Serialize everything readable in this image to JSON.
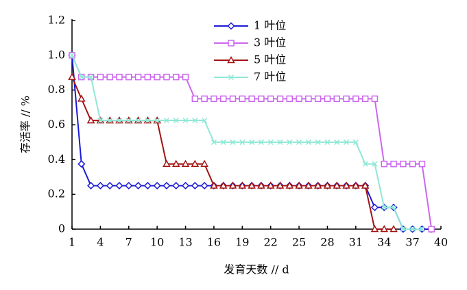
{
  "chart_data": {
    "type": "line",
    "xlabel": "发育天数 // d",
    "ylabel": "存活率 // %",
    "x": [
      1,
      2,
      3,
      4,
      5,
      6,
      7,
      8,
      9,
      10,
      11,
      12,
      13,
      14,
      15,
      16,
      17,
      18,
      19,
      20,
      21,
      22,
      23,
      24,
      25,
      26,
      27,
      28,
      29,
      30,
      31,
      32,
      33,
      34,
      35,
      36,
      37,
      38,
      39
    ],
    "xlim": [
      1,
      40
    ],
    "xticks": [
      1,
      4,
      7,
      10,
      13,
      16,
      19,
      22,
      25,
      28,
      31,
      34,
      37,
      40
    ],
    "ylim": [
      0,
      1.2
    ],
    "yticks": [
      0,
      0.2,
      0.4,
      0.6,
      0.8,
      {
        "value": 1,
        "label": "1.0"
      },
      1.2
    ],
    "series": [
      {
        "name": "1 叶位",
        "color": "#1a1ad6",
        "marker": "diamond",
        "values": [
          1,
          0.375,
          0.25,
          0.25,
          0.25,
          0.25,
          0.25,
          0.25,
          0.25,
          0.25,
          0.25,
          0.25,
          0.25,
          0.25,
          0.25,
          0.25,
          0.25,
          0.25,
          0.25,
          0.25,
          0.25,
          0.25,
          0.25,
          0.25,
          0.25,
          0.25,
          0.25,
          0.25,
          0.25,
          0.25,
          0.25,
          0.25,
          0.125,
          0.125,
          0.125,
          0,
          0,
          0,
          0
        ]
      },
      {
        "name": "3 叶位",
        "color": "#cc66ee",
        "marker": "square",
        "values": [
          1,
          0.875,
          0.875,
          0.875,
          0.875,
          0.875,
          0.875,
          0.875,
          0.875,
          0.875,
          0.875,
          0.875,
          0.875,
          0.75,
          0.75,
          0.75,
          0.75,
          0.75,
          0.75,
          0.75,
          0.75,
          0.75,
          0.75,
          0.75,
          0.75,
          0.75,
          0.75,
          0.75,
          0.75,
          0.75,
          0.75,
          0.75,
          0.75,
          0.375,
          0.375,
          0.375,
          0.375,
          0.375,
          0
        ]
      },
      {
        "name": "5 叶位",
        "color": "#a31212",
        "marker": "triangle",
        "values": [
          0.875,
          0.75,
          0.625,
          0.625,
          0.625,
          0.625,
          0.625,
          0.625,
          0.625,
          0.625,
          0.375,
          0.375,
          0.375,
          0.375,
          0.375,
          0.25,
          0.25,
          0.25,
          0.25,
          0.25,
          0.25,
          0.25,
          0.25,
          0.25,
          0.25,
          0.25,
          0.25,
          0.25,
          0.25,
          0.25,
          0.25,
          0.25,
          0,
          0,
          0,
          null,
          null,
          null,
          null
        ]
      },
      {
        "name": "7 叶位",
        "color": "#8fe8d6",
        "marker": "cross",
        "values": [
          1,
          0.875,
          0.875,
          0.625,
          0.625,
          0.625,
          0.625,
          0.625,
          0.625,
          0.625,
          0.625,
          0.625,
          0.625,
          0.625,
          0.625,
          0.5,
          0.5,
          0.5,
          0.5,
          0.5,
          0.5,
          0.5,
          0.5,
          0.5,
          0.5,
          0.5,
          0.5,
          0.5,
          0.5,
          0.5,
          0.5,
          0.375,
          0.375,
          0.125,
          0.125,
          0,
          0,
          0,
          null
        ]
      }
    ],
    "legend": "upper center"
  }
}
